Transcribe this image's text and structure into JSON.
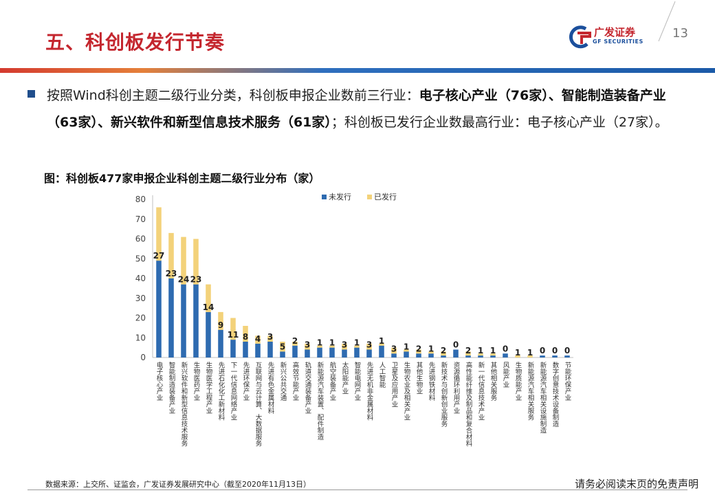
{
  "header": {
    "title": "五、科创板发行节奏",
    "logo_text": "广发证券",
    "logo_sub": "GF SECURITIES",
    "page_number": "13"
  },
  "bullet": {
    "parts": [
      {
        "text": "按照Wind科创主题二级行业分类，科创板申报企业数前三行业：",
        "bold": false
      },
      {
        "text": "电子核心产业（76家）、智能制造装备产业（63家）、新兴软件和新型信息技术服务（61家）",
        "bold": true
      },
      {
        "text": "；科创板已发行企业数最高行业：电子核心产业（27家）。",
        "bold": false
      }
    ]
  },
  "figure_title": "图：科创板477家申报企业科创主题二级行业分布（家）",
  "footer": {
    "source": "数据来源：上交所、证监会，广发证券发展研究中心（截至2020年11月13日）",
    "disclaimer": "请务必阅读末页的免责声明"
  },
  "chart_data": {
    "type": "bar",
    "stacked": true,
    "categories": [
      "电子核心产业",
      "智能制造装备产业",
      "新兴软件和新型信息技术服务",
      "生物医药产业",
      "生物医学工程产业",
      "先进石化化工新材料",
      "下一代信息网络产业",
      "先进环保产业",
      "互联网与云计算、大数据服务",
      "先进有色金属材料",
      "新兴公共交通",
      "高效节能产业",
      "轨道交通装备产业",
      "新能源汽车装置、配件制造",
      "航空装备产业",
      "太阳能产业",
      "智能电网产业",
      "先进无机非金属材料",
      "人工智能",
      "卫星及应用产业",
      "生物农业及相关产业",
      "其他生物业",
      "先进钢铁材料",
      "新技术与创新创业服务",
      "资源循环利用产业",
      "高性能纤维及制品和复合材料",
      "新一代信息技术产业",
      "其他相关服务",
      "风能产业",
      "生物质能产业",
      "新能源汽车相关服务",
      "新能源汽车相关设施制造",
      "数字创意技术设备制造",
      "节能环保产业"
    ],
    "series": [
      {
        "name": "未发行",
        "color": "#2e6bb0",
        "values": [
          49,
          40,
          37,
          37,
          23,
          14,
          9,
          8,
          7,
          8,
          3,
          6,
          4,
          5,
          5,
          4,
          5,
          4,
          6,
          2,
          3,
          2,
          2,
          1,
          4,
          1,
          1,
          1,
          2,
          0,
          0,
          1,
          1,
          1
        ]
      },
      {
        "name": "已发行",
        "color": "#f3d27a",
        "values": [
          27,
          23,
          24,
          23,
          14,
          9,
          11,
          8,
          4,
          3,
          5,
          2,
          3,
          1,
          1,
          3,
          1,
          3,
          1,
          3,
          1,
          2,
          1,
          2,
          0,
          2,
          1,
          1,
          0,
          1,
          1,
          0,
          0,
          0
        ]
      }
    ],
    "ylim": [
      0,
      80
    ],
    "yticks": [
      0,
      10,
      20,
      30,
      40,
      50,
      60,
      70,
      80
    ],
    "legend": "top-right"
  }
}
